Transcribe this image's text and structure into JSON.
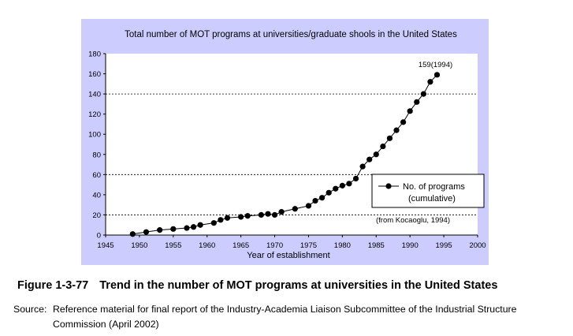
{
  "chart_data": {
    "type": "line",
    "title": "Total number of MOT programs at universities/graduate shools in the United States",
    "xlabel": "Year of establishment",
    "ylabel": "",
    "xlim": [
      1945,
      2000
    ],
    "ylim": [
      0,
      180
    ],
    "xticks": [
      1945,
      1950,
      1955,
      1960,
      1965,
      1970,
      1975,
      1980,
      1985,
      1990,
      1995,
      2000
    ],
    "yticks": [
      0,
      20,
      40,
      60,
      80,
      100,
      120,
      140,
      160,
      180
    ],
    "grid": "horizontal dashed at 20, 60, 140",
    "legend_position": "right, lower middle",
    "series": [
      {
        "name": "No. of programs (cumulative)",
        "x": [
          1949,
          1951,
          1953,
          1955,
          1957,
          1958,
          1959,
          1961,
          1962,
          1963,
          1965,
          1966,
          1968,
          1969,
          1970,
          1971,
          1973,
          1975,
          1976,
          1977,
          1978,
          1979,
          1980,
          1981,
          1982,
          1983,
          1984,
          1985,
          1986,
          1987,
          1988,
          1989,
          1990,
          1991,
          1992,
          1993,
          1994
        ],
        "values": [
          1,
          3,
          5,
          6,
          7,
          8,
          10,
          12,
          15,
          17,
          18,
          19,
          20,
          21,
          20,
          23,
          26,
          29,
          34,
          37,
          42,
          46,
          49,
          51,
          56,
          68,
          75,
          80,
          88,
          96,
          104,
          112,
          123,
          132,
          140,
          152,
          159
        ]
      }
    ],
    "legend": {
      "line1": "No. of programs",
      "line2": "(cumulative)"
    },
    "annotations": {
      "peak_label": "159(1994)",
      "source_note": "(from Kocaoglu, 1994)"
    }
  },
  "caption": {
    "number": "Figure 1-3-77",
    "text": "Trend in the number of MOT programs at universities in the United States"
  },
  "source": {
    "label": "Source:",
    "line1": "Reference material for final report of the Industry-Academia Liaison Subcommittee of the Industrial Structure",
    "line2": "Commission (April 2002)"
  },
  "colors": {
    "panel_background": "#ccccff",
    "plot_background": "#ffffff",
    "series": "#000000"
  }
}
